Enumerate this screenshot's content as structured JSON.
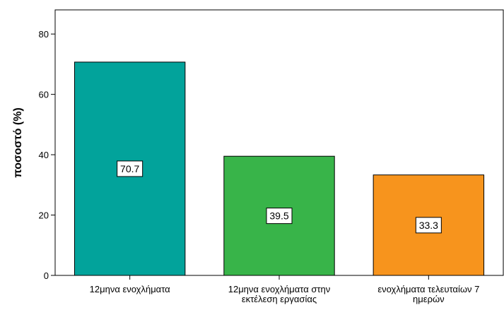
{
  "chart_data": {
    "type": "bar",
    "categories": [
      [
        "12μηνα ενοχλήματα"
      ],
      [
        "12μηνα ενοχλήματα στην",
        "εκτέλεση εργασίας"
      ],
      [
        "ενοχλήματα τελευταίων 7",
        "ημερών"
      ]
    ],
    "values": [
      70.7,
      39.5,
      33.3
    ],
    "data_labels": [
      "70.7",
      "39.5",
      "33.3"
    ],
    "colors": [
      "#02a39b",
      "#38b449",
      "#f7941d"
    ],
    "ylabel": "ποσοστό (%)",
    "ylim": [
      0,
      88
    ],
    "yticks": [
      0,
      20,
      40,
      60,
      80
    ],
    "grid": false
  }
}
